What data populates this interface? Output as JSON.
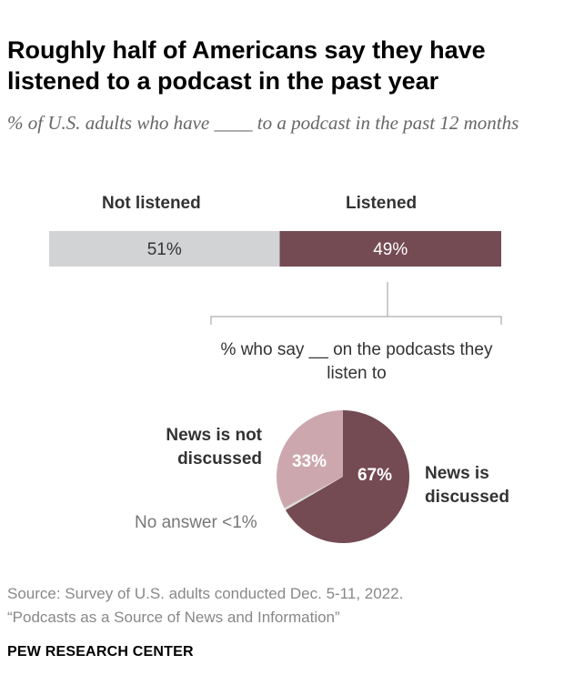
{
  "title": "Roughly half of Americans say they have listened to a podcast in the past year",
  "subtitle": "% of U.S. adults who have ____ to a podcast in the past 12 months",
  "chart_data": [
    {
      "type": "bar",
      "orientation": "horizontal-stacked",
      "categories": [
        "Not listened",
        "Listened"
      ],
      "values": [
        51,
        49
      ],
      "labels": [
        "51%",
        "49%"
      ],
      "colors": [
        "#d1d3d4",
        "#744a53"
      ]
    },
    {
      "type": "pie",
      "title": "% who say __ on the podcasts they listen to",
      "slices": [
        {
          "name": "News is discussed",
          "value": 67,
          "label": "67%",
          "color": "#744a53"
        },
        {
          "name": "No answer",
          "value": 0.6,
          "label": "No answer <1%",
          "color": "#dcdcdc"
        },
        {
          "name": "News is not discussed",
          "value": 33,
          "label": "33%",
          "color": "#cca8ae"
        }
      ]
    }
  ],
  "labels": {
    "not_listened": "Not listened",
    "listened": "Listened",
    "news_not": "News is not discussed",
    "news_is": "News is discussed"
  },
  "source": [
    "Source: Survey of U.S. adults conducted Dec. 5-11, 2022.",
    "“Podcasts as a Source of News and Information”"
  ],
  "logo": "PEW RESEARCH CENTER"
}
